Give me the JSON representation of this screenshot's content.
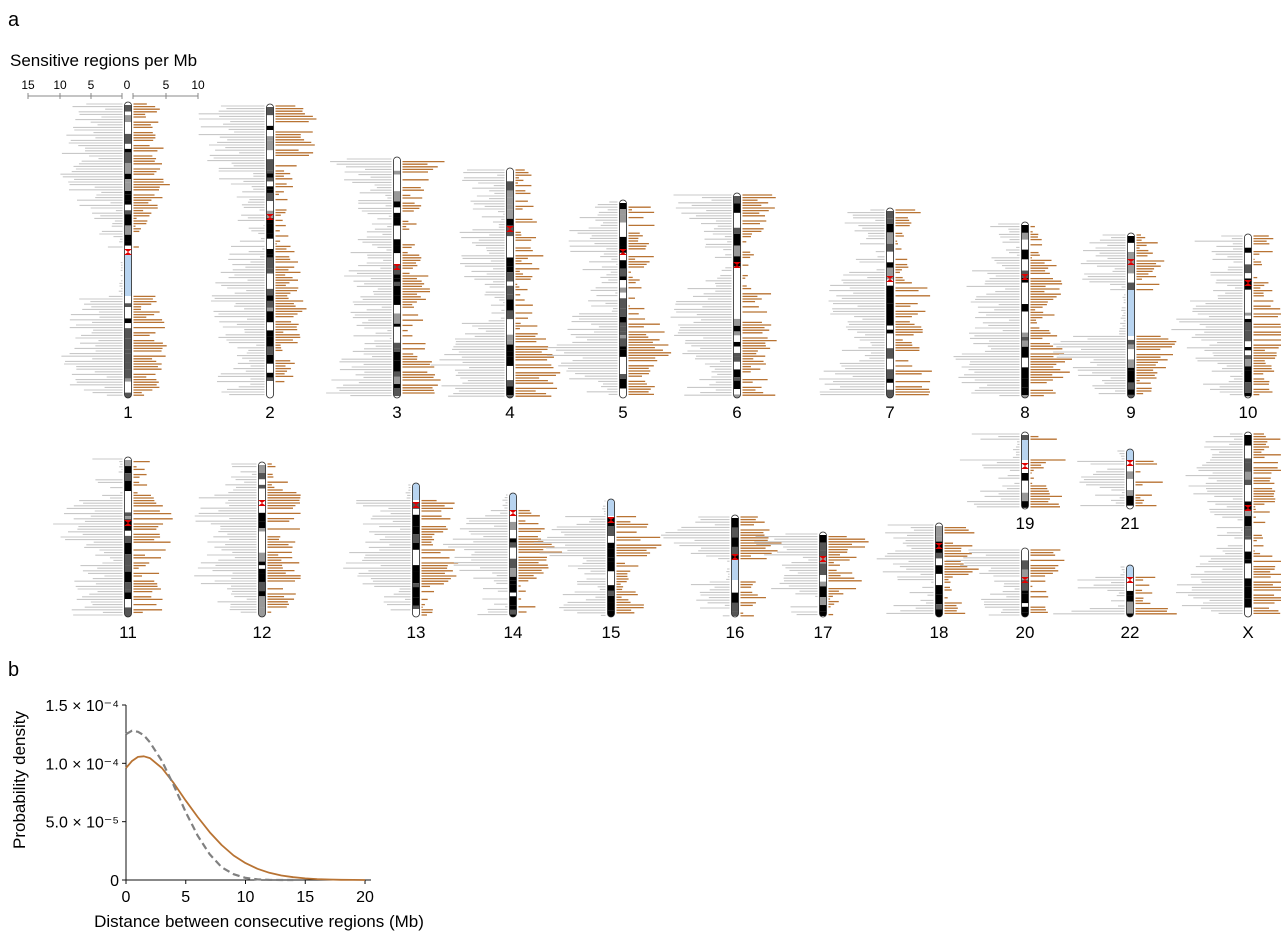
{
  "panel_a": {
    "letter": "a",
    "scale_title": "Sensitive regions per Mb",
    "scale_ticks_left": [
      "15",
      "10",
      "5",
      "0"
    ],
    "scale_ticks_right": [
      "5",
      "10"
    ],
    "chromosomes": [
      "1",
      "2",
      "3",
      "4",
      "5",
      "6",
      "7",
      "8",
      "9",
      "10",
      "11",
      "12",
      "13",
      "14",
      "15",
      "16",
      "17",
      "18",
      "19",
      "20",
      "21",
      "22",
      "X"
    ]
  },
  "panel_b": {
    "letter": "b"
  },
  "colors": {
    "left_bars": "#c8c8c8",
    "right_bars": "#b87333",
    "centromere": "#e00000",
    "heterochromatin": "#b8d4f0",
    "observed_curve": "#b87333",
    "expected_curve": "#808080"
  },
  "chart_data": [
    {
      "type": "bar",
      "description_note": "",
      "categories": [
        "1",
        "2",
        "3",
        "4",
        "5",
        "6",
        "7",
        "8",
        "9",
        "10",
        "11",
        "12",
        "13",
        "14",
        "15",
        "16",
        "17",
        "18",
        "19",
        "20",
        "21",
        "22",
        "X"
      ],
      "x_scale_left": [
        15,
        10,
        5,
        0
      ],
      "x_scale_right": [
        0,
        5,
        10
      ],
      "units": "Sensitive regions per Mb"
    },
    {
      "type": "line",
      "xlabel": "Distance between consecutive regions (Mb)",
      "ylabel": "Probability density",
      "xlim": [
        0,
        20.5
      ],
      "ylim": [
        0,
        0.00015
      ],
      "x_ticks": [
        "0",
        "5",
        "10",
        "15",
        "20"
      ],
      "y_ticks": [
        "0",
        "5.0 × 10⁻⁵",
        "1.0 × 10⁻⁴",
        "1.5 × 10⁻⁴"
      ],
      "series": [
        {
          "style": "solid",
          "color": "#b87333",
          "x": [
            0,
            0.5,
            1,
            1.5,
            2,
            3,
            4,
            5,
            6,
            7,
            8,
            9,
            10,
            11,
            12,
            13,
            14,
            15,
            16,
            17,
            18,
            19,
            20
          ],
          "y": [
            9.6e-05,
            0.000102,
            0.0001055,
            0.000106,
            0.0001045,
            9.6e-05,
            8.3e-05,
            6.8e-05,
            5.4e-05,
            4.1e-05,
            3e-05,
            2.1e-05,
            1.45e-05,
            9.6e-06,
            6.2e-06,
            3.9e-06,
            2.4e-06,
            1.4e-06,
            8e-07,
            4e-07,
            2e-07,
            1e-07,
            0
          ]
        },
        {
          "style": "dashed",
          "color": "#808080",
          "x": [
            0,
            0.5,
            1,
            1.5,
            2,
            3,
            4,
            5,
            6,
            7,
            8,
            9,
            10,
            11,
            12,
            13,
            14
          ],
          "y": [
            0.000125,
            0.000128,
            0.000127,
            0.000124,
            0.000118,
            0.000102,
            8.1e-05,
            5.8e-05,
            3.8e-05,
            2.2e-05,
            1.1e-05,
            5e-06,
            1.8e-06,
            5e-07,
            1e-07,
            0,
            0
          ]
        }
      ]
    }
  ]
}
